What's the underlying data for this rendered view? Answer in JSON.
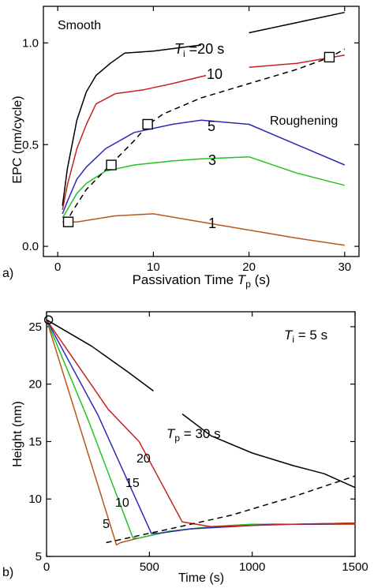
{
  "chart_data": [
    {
      "type": "line",
      "panel_label": "a)",
      "xlabel_text": "Passivation Time ",
      "xlabel_symbol": "T",
      "xlabel_subscript": "p",
      "xlabel_unit": " (s)",
      "ylabel": "EPC (nm/cycle)",
      "xlim": [
        -1.5,
        31.5
      ],
      "ylim": [
        -0.05,
        1.18
      ],
      "xticks": [
        0,
        10,
        20,
        30
      ],
      "yticks": [
        0.0,
        0.5,
        1.0
      ],
      "ytick_labels": [
        "0.0",
        "0.5",
        "1.0"
      ],
      "grid": false,
      "annotations": {
        "smooth": "Smooth",
        "roughening": "Roughening"
      },
      "series": [
        {
          "label": "1",
          "color": "#b8561f",
          "x": [
            0.5,
            2,
            6,
            10,
            15,
            20,
            25,
            30
          ],
          "y": [
            0.12,
            0.12,
            0.15,
            0.16,
            0.12,
            0.08,
            0.04,
            0.005
          ]
        },
        {
          "label": "3",
          "color": "#22c322",
          "x": [
            0.5,
            1,
            2,
            3,
            5,
            8,
            12,
            15,
            20,
            25,
            30
          ],
          "y": [
            0.14,
            0.18,
            0.26,
            0.31,
            0.37,
            0.4,
            0.42,
            0.43,
            0.44,
            0.36,
            0.3
          ]
        },
        {
          "label": "5",
          "color": "#2a2ab8",
          "x": [
            0.5,
            1,
            2,
            3,
            5,
            8,
            12,
            15,
            20,
            25,
            30
          ],
          "y": [
            0.16,
            0.22,
            0.33,
            0.39,
            0.48,
            0.56,
            0.6,
            0.62,
            0.6,
            0.5,
            0.4
          ]
        },
        {
          "label": "10",
          "color": "#c62222",
          "x": [
            0.5,
            1,
            2,
            3,
            4,
            6,
            9,
            12,
            15.5
          ],
          "y": [
            0.18,
            0.3,
            0.48,
            0.6,
            0.7,
            0.75,
            0.77,
            0.8,
            0.84
          ],
          "x2": [
            20,
            25,
            30
          ],
          "y2": [
            0.88,
            0.9,
            0.94
          ]
        },
        {
          "label": "T_i =20 s",
          "label_symbol": "T",
          "label_subscript": "i",
          "label_rest": " =20 s",
          "color": "#000000",
          "x": [
            0.5,
            1,
            2,
            3,
            4,
            5.5,
            7,
            10,
            15
          ],
          "y": [
            0.2,
            0.38,
            0.62,
            0.76,
            0.84,
            0.9,
            0.95,
            0.96,
            0.99
          ],
          "x2": [
            20,
            25,
            30
          ],
          "y2": [
            1.05,
            1.1,
            1.15
          ]
        }
      ],
      "dashed_line": {
        "x": [
          0.8,
          1.5,
          3,
          5.5,
          8,
          9.5,
          11,
          15,
          20,
          25,
          28.5,
          30
        ],
        "y": [
          0.11,
          0.17,
          0.28,
          0.4,
          0.52,
          0.6,
          0.65,
          0.73,
          0.8,
          0.87,
          0.93,
          0.97
        ]
      },
      "square_markers": {
        "x": [
          1.1,
          5.6,
          9.4,
          28.4
        ],
        "y": [
          0.12,
          0.4,
          0.6,
          0.93
        ]
      }
    },
    {
      "type": "line",
      "panel_label": "b)",
      "xlabel": "Time (s)",
      "ylabel": "Height (nm)",
      "xlim": [
        0,
        1500
      ],
      "ylim": [
        5,
        26.3
      ],
      "xticks": [
        0,
        500,
        1000,
        1500
      ],
      "yticks": [
        5,
        10,
        15,
        20,
        25
      ],
      "grid": false,
      "annotation": {
        "symbol": "T",
        "subscript": "i",
        "rest": " = 5 s"
      },
      "series": [
        {
          "label": "5",
          "color": "#b8561f",
          "x": [
            0,
            340,
            360,
            450,
            600,
            800,
            1000,
            1200,
            1500
          ],
          "y": [
            25.6,
            6.0,
            6.2,
            6.6,
            7.2,
            7.6,
            7.8,
            7.8,
            7.8
          ]
        },
        {
          "label": "10",
          "color": "#22c322",
          "x": [
            0,
            200,
            420,
            450,
            600,
            800,
            1000,
            1200,
            1500
          ],
          "y": [
            25.6,
            17.0,
            6.6,
            6.6,
            7.2,
            7.6,
            7.8,
            7.8,
            7.9
          ]
        },
        {
          "label": "15",
          "color": "#2a2ab8",
          "x": [
            0,
            250,
            510,
            540,
            700,
            900,
            1100,
            1300,
            1500
          ],
          "y": [
            25.6,
            17.3,
            7.0,
            7.0,
            7.4,
            7.6,
            7.8,
            7.8,
            7.9
          ]
        },
        {
          "label": "20",
          "color": "#c62222",
          "x": [
            0,
            300,
            450,
            570,
            660,
            800,
            1000,
            1200,
            1500
          ],
          "y": [
            25.6,
            17.8,
            15.0,
            11.0,
            8.0,
            7.6,
            7.7,
            7.8,
            7.9
          ]
        },
        {
          "label_symbol": "T",
          "label_subscript": "p",
          "label_rest": " = 30 s",
          "color": "#000000",
          "x": [
            0,
            220,
            400,
            520
          ],
          "y": [
            25.6,
            23.3,
            21.0,
            19.4
          ],
          "x2": [
            660,
            800,
            1000,
            1200,
            1350,
            1500
          ],
          "y2": [
            17.4,
            15.5,
            14.0,
            12.9,
            12.2,
            11.0
          ]
        }
      ],
      "dashed_line": {
        "x": [
          290,
          600,
          900,
          1200,
          1500
        ],
        "y": [
          6.2,
          7.4,
          8.6,
          10.2,
          12.0
        ]
      },
      "circle_marker": {
        "x": 10,
        "y": 25.6
      }
    }
  ]
}
